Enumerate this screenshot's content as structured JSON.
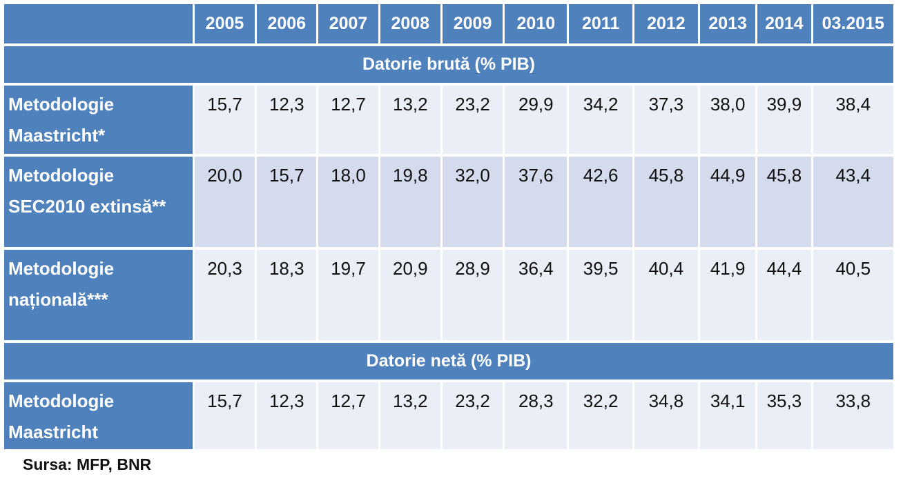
{
  "chart_data": {
    "type": "table",
    "columns": [
      "2005",
      "2006",
      "2007",
      "2008",
      "2009",
      "2010",
      "2011",
      "2012",
      "2013",
      "2014",
      "03.2015"
    ],
    "sections": [
      {
        "title": "Datorie brută (% PIB)",
        "rows": [
          {
            "label_lines": [
              "Metodologie",
              "Maastricht*"
            ],
            "values": [
              "15,7",
              "12,3",
              "12,7",
              "13,2",
              "23,2",
              "29,9",
              "34,2",
              "37,3",
              "38,0",
              "39,9",
              "38,4"
            ]
          },
          {
            "label_lines": [
              "Metodologie",
              "SEC2010 extinsă**"
            ],
            "values": [
              "20,0",
              "15,7",
              "18,0",
              "19,8",
              "32,0",
              "37,6",
              "42,6",
              "45,8",
              "44,9",
              "45,8",
              "43,4"
            ]
          },
          {
            "label_lines": [
              "Metodologie",
              "națională***"
            ],
            "values": [
              "20,3",
              "18,3",
              "19,7",
              "20,9",
              "28,9",
              "36,4",
              "39,5",
              "40,4",
              "41,9",
              "44,4",
              "40,5"
            ]
          }
        ]
      },
      {
        "title": "Datorie netă (% PIB)",
        "rows": [
          {
            "label_lines": [
              "Metodologie",
              "Maastricht"
            ],
            "values": [
              "15,7",
              "12,3",
              "12,7",
              "13,2",
              "23,2",
              "28,3",
              "32,2",
              "34,8",
              "34,1",
              "35,3",
              "33,8"
            ]
          }
        ]
      }
    ],
    "source": "Sursa: MFP, BNR"
  },
  "colors": {
    "header": "#4f81bd",
    "row_light": "#eaeff7",
    "row_dark": "#d3dbed",
    "header_text": "#ffffff"
  }
}
